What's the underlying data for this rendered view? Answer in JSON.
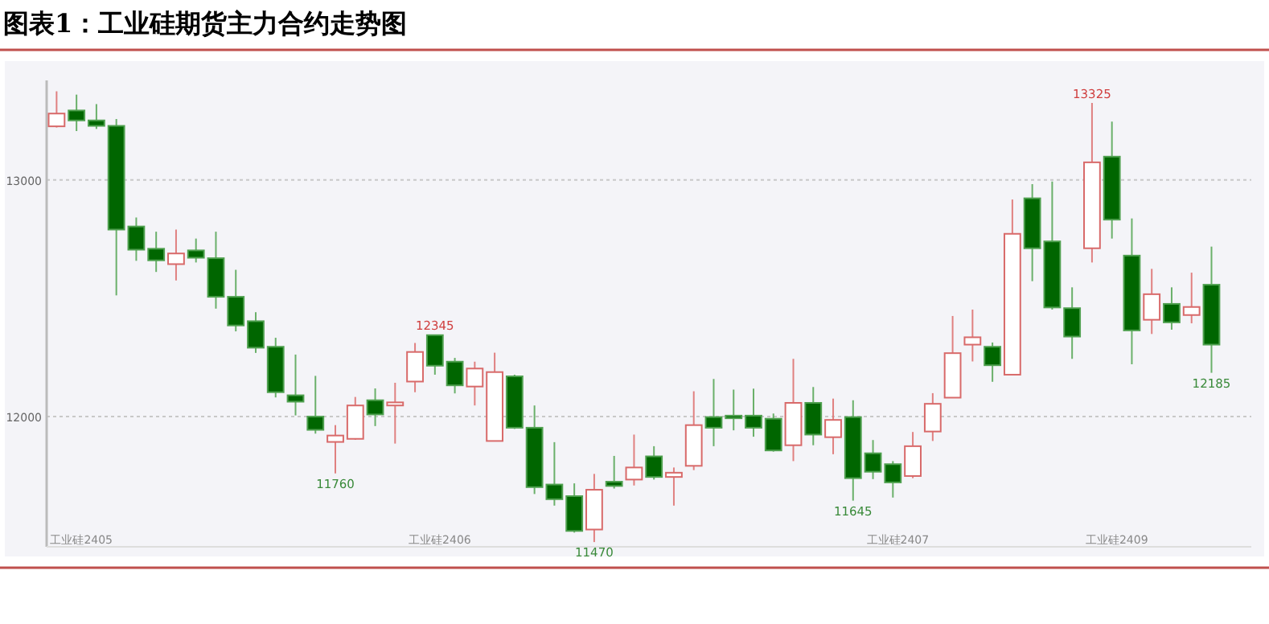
{
  "chart_data": {
    "type": "candlestick",
    "title": "图表1：工业硅期货主力合约走势图",
    "categories": [
      null,
      null,
      null,
      null,
      null,
      null,
      null,
      null,
      null,
      null,
      null,
      null,
      null,
      null,
      null,
      null,
      null,
      null,
      null,
      null,
      null,
      null,
      null,
      null,
      null,
      null,
      null,
      null,
      null,
      null,
      null,
      null,
      null,
      null,
      null,
      null,
      null,
      null,
      null,
      null,
      null,
      null,
      null,
      null,
      null,
      null,
      null,
      null,
      null,
      null,
      null,
      null,
      null,
      null,
      null,
      null,
      null,
      null,
      null
    ],
    "ohlc": [
      [
        13226,
        13374,
        13221,
        13280
      ],
      [
        13293,
        13360,
        13206,
        13251
      ],
      [
        13251,
        13320,
        13215,
        13228
      ],
      [
        13228,
        13257,
        12512,
        12790
      ],
      [
        12803,
        12841,
        12658,
        12705
      ],
      [
        12709,
        12781,
        12611,
        12660
      ],
      [
        12644,
        12790,
        12575,
        12689
      ],
      [
        12702,
        12752,
        12651,
        12671
      ],
      [
        12669,
        12781,
        12456,
        12506
      ],
      [
        12506,
        12620,
        12360,
        12385
      ],
      [
        12403,
        12441,
        12269,
        12291
      ],
      [
        12295,
        12333,
        12081,
        12103
      ],
      [
        12090,
        12262,
        12005,
        12063
      ],
      [
        12000,
        12172,
        11928,
        11944
      ],
      [
        11893,
        11964,
        11760,
        11920
      ],
      [
        11906,
        12083,
        11902,
        12047
      ],
      [
        12069,
        12119,
        11960,
        12009
      ],
      [
        12047,
        12143,
        11886,
        12060
      ],
      [
        12148,
        12311,
        12103,
        12273
      ],
      [
        12344,
        12345,
        12177,
        12215
      ],
      [
        12232,
        12248,
        12098,
        12132
      ],
      [
        12127,
        12232,
        12047,
        12203
      ],
      [
        11897,
        12270,
        11897,
        12188
      ],
      [
        12170,
        12177,
        11948,
        11953
      ],
      [
        11953,
        12047,
        11673,
        11702
      ],
      [
        11713,
        11892,
        11624,
        11651
      ],
      [
        11664,
        11718,
        11510,
        11517
      ],
      [
        11523,
        11758,
        11470,
        11691
      ],
      [
        11725,
        11834,
        11696,
        11707
      ],
      [
        11734,
        11924,
        11709,
        11785
      ],
      [
        11832,
        11875,
        11734,
        11745
      ],
      [
        11745,
        11785,
        11624,
        11763
      ],
      [
        11792,
        12107,
        11774,
        11964
      ],
      [
        11998,
        12159,
        11875,
        11953
      ],
      [
        12004,
        12114,
        11942,
        11993
      ],
      [
        12004,
        12118,
        11915,
        11953
      ],
      [
        11991,
        12013,
        11852,
        11857
      ],
      [
        11879,
        12244,
        11812,
        12058
      ],
      [
        12058,
        12125,
        11879,
        11924
      ],
      [
        11913,
        12076,
        11841,
        11986
      ],
      [
        11998,
        12069,
        11645,
        11740
      ],
      [
        11845,
        11901,
        11736,
        11767
      ],
      [
        11799,
        11812,
        11658,
        11722
      ],
      [
        11749,
        11935,
        11740,
        11875
      ],
      [
        11937,
        12099,
        11897,
        12054
      ],
      [
        12080,
        12425,
        12080,
        12268
      ],
      [
        12304,
        12452,
        12233,
        12335
      ],
      [
        12295,
        12313,
        12147,
        12217
      ],
      [
        12177,
        12917,
        12177,
        12772
      ],
      [
        12922,
        12982,
        12572,
        12711
      ],
      [
        12740,
        12993,
        12452,
        12461
      ],
      [
        12458,
        12546,
        12244,
        12338
      ],
      [
        12711,
        13325,
        12651,
        13074
      ],
      [
        13098,
        13246,
        12752,
        12832
      ],
      [
        12680,
        12837,
        12221,
        12364
      ],
      [
        12409,
        12624,
        12349,
        12517
      ],
      [
        12476,
        12546,
        12367,
        12398
      ],
      [
        12429,
        12608,
        12394,
        12463
      ],
      [
        12557,
        12718,
        12185,
        12304
      ]
    ],
    "ylim": [
      11450,
      13420
    ],
    "yticks": [
      12000,
      13000
    ],
    "grid": "y",
    "tick_labels": "y",
    "annotations": [
      {
        "text": "13325",
        "y": 13325
      },
      {
        "text": "12345",
        "y": 12345
      },
      {
        "text": "11760",
        "y": 11760
      },
      {
        "text": "11470",
        "y": 11470
      },
      {
        "text": "11645",
        "y": 11645
      },
      {
        "text": "12185",
        "y": 12185
      },
      "工业硅2405",
      "工业硅2406",
      "工业硅2407",
      "工业硅2409"
    ]
  }
}
